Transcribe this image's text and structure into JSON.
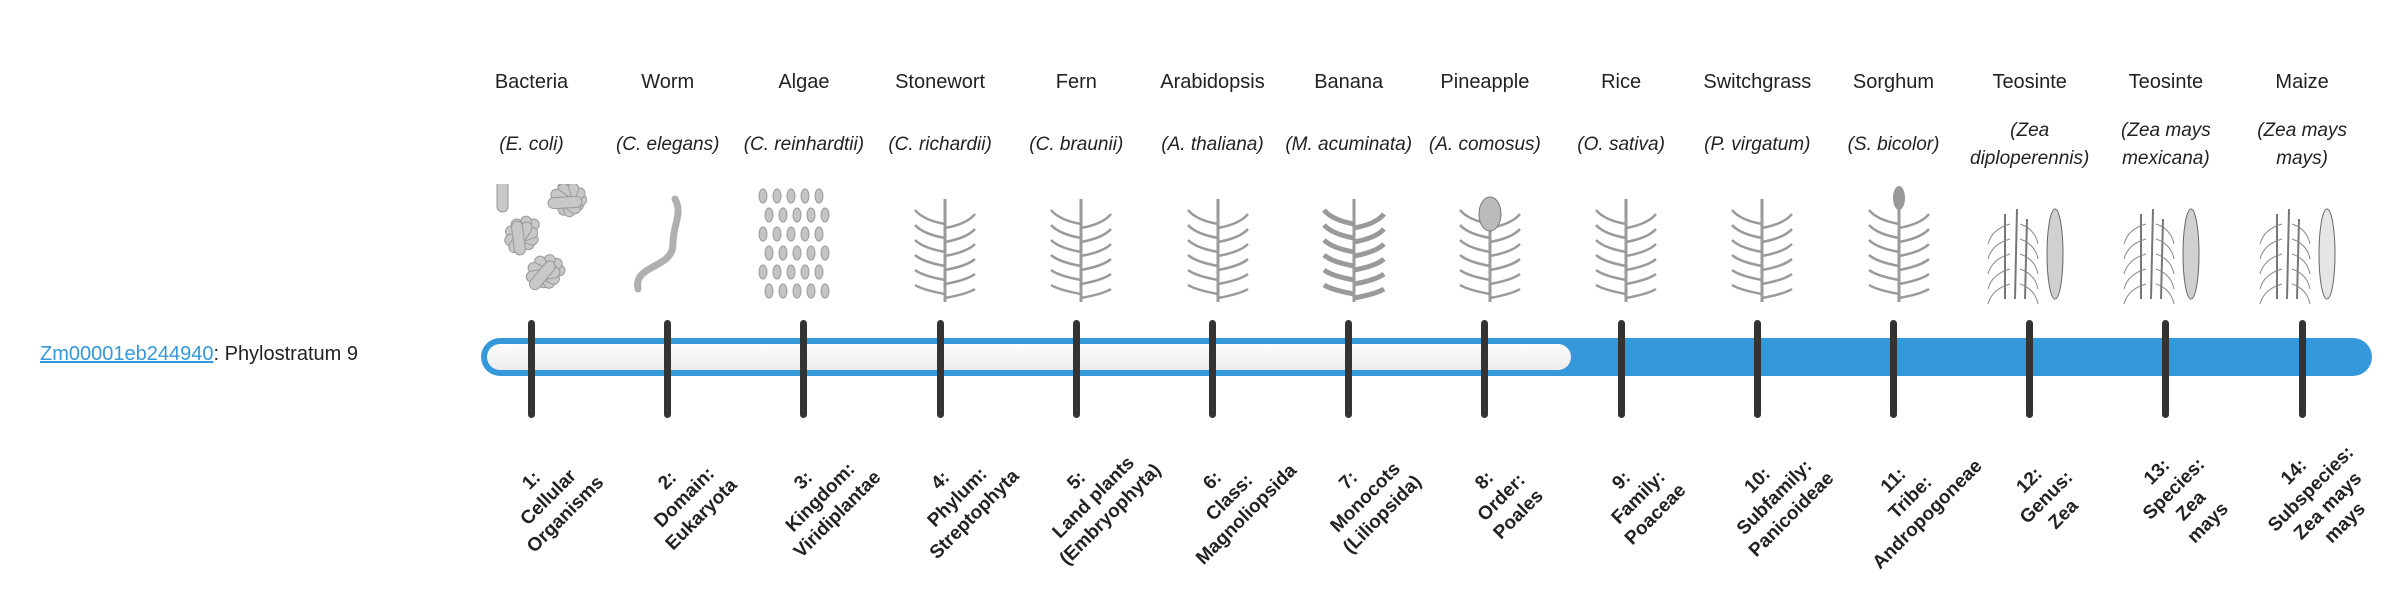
{
  "gene": {
    "id": "Zm00001eb244940",
    "suffix": ": Phylostratum 9",
    "phylostratum": 9
  },
  "colors": {
    "accent": "#3498db",
    "tick": "#333333",
    "bar_empty": "#f2f2f2"
  },
  "organisms": [
    {
      "common": "Bacteria",
      "scientific": "(E. coli)",
      "icon": "bacteria-icon"
    },
    {
      "common": "Worm",
      "scientific": "(C. elegans)",
      "icon": "worm-icon"
    },
    {
      "common": "Algae",
      "scientific": "(C. reinhardtii)",
      "icon": "algae-icon"
    },
    {
      "common": "Stonewort",
      "scientific": "(C. richardii)",
      "icon": "stonewort-icon"
    },
    {
      "common": "Fern",
      "scientific": "(C. braunii)",
      "icon": "fern-icon"
    },
    {
      "common": "Arabidopsis",
      "scientific": "(A. thaliana)",
      "icon": "arabidopsis-icon"
    },
    {
      "common": "Banana",
      "scientific": "(M. acuminata)",
      "icon": "banana-icon"
    },
    {
      "common": "Pineapple",
      "scientific": "(A. comosus)",
      "icon": "pineapple-icon"
    },
    {
      "common": "Rice",
      "scientific": "(O. sativa)",
      "icon": "rice-icon"
    },
    {
      "common": "Switchgrass",
      "scientific": "(P. virgatum)",
      "icon": "switchgrass-icon"
    },
    {
      "common": "Sorghum",
      "scientific": "(S. bicolor)",
      "icon": "sorghum-icon"
    },
    {
      "common": "Teosinte",
      "scientific": "(Zea diploperennis)",
      "icon": "teosinte-icon"
    },
    {
      "common": "Teosinte",
      "scientific": "(Zea mays mexicana)",
      "icon": "teosinte-icon"
    },
    {
      "common": "Maize",
      "scientific": "(Zea mays mays)",
      "icon": "maize-icon"
    }
  ],
  "strata": [
    "1:\nCellular\nOrganisms",
    "2:\nDomain:\nEukaryota",
    "3:\nKingdom:\nViridiplantae",
    "4:\nPhylum:\nStreptophyta",
    "5:\nLand plants\n(Embryophyta)",
    "6:\nClass:\nMagnoliopsida",
    "7:\nMonocots\n(Liliopsida)",
    "8:\nOrder:\nPoales",
    "9:\nFamily:\nPoaceae",
    "10:\nSubfamily:\nPanicoideae",
    "11:\nTribe:\nAndropogoneae",
    "12:\nGenus:\nZea",
    "13:\nSpecies:\nZea\nmays",
    "14:\nSubspecies:\nZea mays\nmays"
  ]
}
